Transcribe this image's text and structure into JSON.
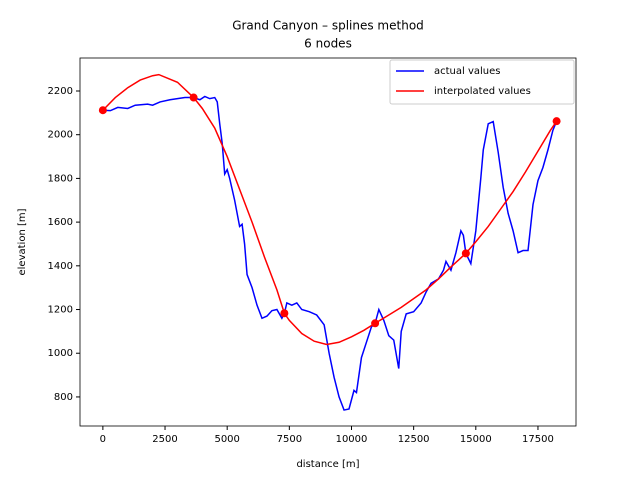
{
  "chart_data": {
    "type": "line",
    "title": "Grand Canyon – splines method",
    "subtitle": "6 nodes",
    "xlabel": "distance [m]",
    "ylabel": "elevation [m]",
    "xlim": [
      -920,
      19030
    ],
    "ylim": [
      667,
      2351
    ],
    "xticks": [
      0,
      2500,
      5000,
      7500,
      10000,
      12500,
      15000,
      17500
    ],
    "yticks": [
      800,
      1000,
      1200,
      1400,
      1600,
      1800,
      2000,
      2200
    ],
    "legend": "upper right",
    "series": [
      {
        "name": "actual values",
        "color": "#0000ff",
        "x": [
          0,
          300,
          600,
          1000,
          1300,
          1800,
          2000,
          2300,
          2700,
          3000,
          3300,
          3650,
          3900,
          4100,
          4300,
          4500,
          4600,
          4700,
          4800,
          4900,
          5000,
          5100,
          5300,
          5500,
          5600,
          5700,
          5800,
          6000,
          6200,
          6400,
          6600,
          6800,
          7000,
          7200,
          7300,
          7400,
          7600,
          7800,
          8000,
          8300,
          8600,
          8900,
          9100,
          9300,
          9500,
          9700,
          9900,
          10100,
          10200,
          10400,
          10600,
          10800,
          10950,
          11100,
          11300,
          11500,
          11700,
          11900,
          12000,
          12200,
          12500,
          12800,
          13000,
          13200,
          13500,
          13700,
          13800,
          14000,
          14200,
          14400,
          14500,
          14600,
          14800,
          15000,
          15200,
          15300,
          15500,
          15700,
          15900,
          16100,
          16300,
          16500,
          16700,
          16900,
          17100,
          17300,
          17500,
          17700,
          17900,
          18100,
          18250
        ],
        "values": [
          2112,
          2110,
          2125,
          2120,
          2135,
          2140,
          2135,
          2150,
          2160,
          2165,
          2170,
          2170,
          2160,
          2175,
          2165,
          2170,
          2150,
          2050,
          1960,
          1820,
          1840,
          1800,
          1700,
          1580,
          1590,
          1500,
          1360,
          1300,
          1220,
          1160,
          1170,
          1195,
          1200,
          1160,
          1183,
          1230,
          1220,
          1230,
          1200,
          1190,
          1175,
          1130,
          1000,
          890,
          800,
          740,
          745,
          830,
          820,
          980,
          1050,
          1120,
          1137,
          1200,
          1150,
          1080,
          1060,
          930,
          1100,
          1180,
          1190,
          1230,
          1280,
          1320,
          1340,
          1380,
          1420,
          1380,
          1460,
          1560,
          1540,
          1457,
          1410,
          1560,
          1800,
          1930,
          2050,
          2060,
          1920,
          1760,
          1640,
          1560,
          1460,
          1470,
          1470,
          1680,
          1790,
          1850,
          1930,
          2020,
          2062
        ]
      },
      {
        "name": "interpolated values",
        "color": "#ff0000",
        "x": [
          0,
          500,
          1000,
          1500,
          2000,
          2250,
          3000,
          3650,
          4000,
          4500,
          5000,
          5500,
          6000,
          6500,
          7000,
          7300,
          7500,
          8000,
          8500,
          9000,
          9500,
          10000,
          10500,
          10950,
          11500,
          12000,
          12500,
          13000,
          13500,
          14000,
          14600,
          15000,
          15500,
          16000,
          16500,
          17000,
          17500,
          18000,
          18250
        ],
        "values": [
          2112,
          2170,
          2215,
          2250,
          2270,
          2275,
          2240,
          2170,
          2120,
          2030,
          1900,
          1750,
          1600,
          1440,
          1290,
          1183,
          1150,
          1090,
          1055,
          1040,
          1050,
          1075,
          1105,
          1137,
          1175,
          1210,
          1250,
          1290,
          1340,
          1395,
          1457,
          1510,
          1580,
          1660,
          1740,
          1830,
          1925,
          2020,
          2062
        ]
      }
    ],
    "nodes": {
      "color": "#ff0000",
      "x": [
        0,
        3650,
        7300,
        10950,
        14600,
        18250
      ],
      "values": [
        2112,
        2170,
        1183,
        1137,
        1457,
        2062
      ]
    }
  }
}
